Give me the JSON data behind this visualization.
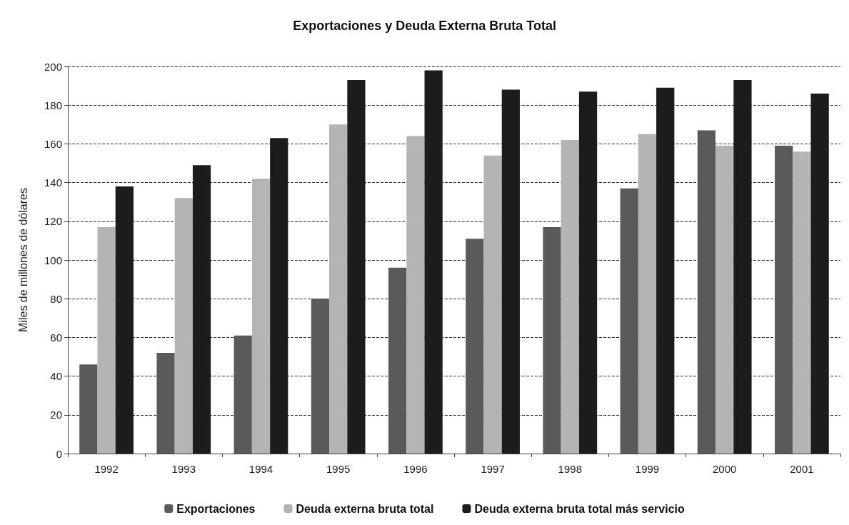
{
  "chart_data": {
    "type": "bar",
    "title": "Exportaciones y Deuda Externa Bruta Total",
    "ylabel": "Miles de millones de dólares",
    "categories": [
      "1992",
      "1993",
      "1994",
      "1995",
      "1996",
      "1997",
      "1998",
      "1999",
      "2000",
      "2001"
    ],
    "series": [
      {
        "name": "Exportaciones",
        "color": "#5a5a5a",
        "values": [
          46,
          52,
          61,
          80,
          96,
          111,
          117,
          137,
          167,
          159
        ]
      },
      {
        "name": "Deuda externa bruta total",
        "color": "#b4b4b4",
        "values": [
          117,
          132,
          142,
          170,
          164,
          154,
          162,
          165,
          159,
          156
        ]
      },
      {
        "name": "Deuda externa bruta total más servicio",
        "color": "#1c1c1c",
        "values": [
          138,
          149,
          163,
          193,
          198,
          188,
          187,
          189,
          193,
          186
        ]
      }
    ],
    "ylim": [
      0,
      200
    ],
    "yticks": [
      0,
      20,
      40,
      60,
      80,
      100,
      120,
      140,
      160,
      180,
      200
    ],
    "grid": "y",
    "legend": "bottom"
  }
}
